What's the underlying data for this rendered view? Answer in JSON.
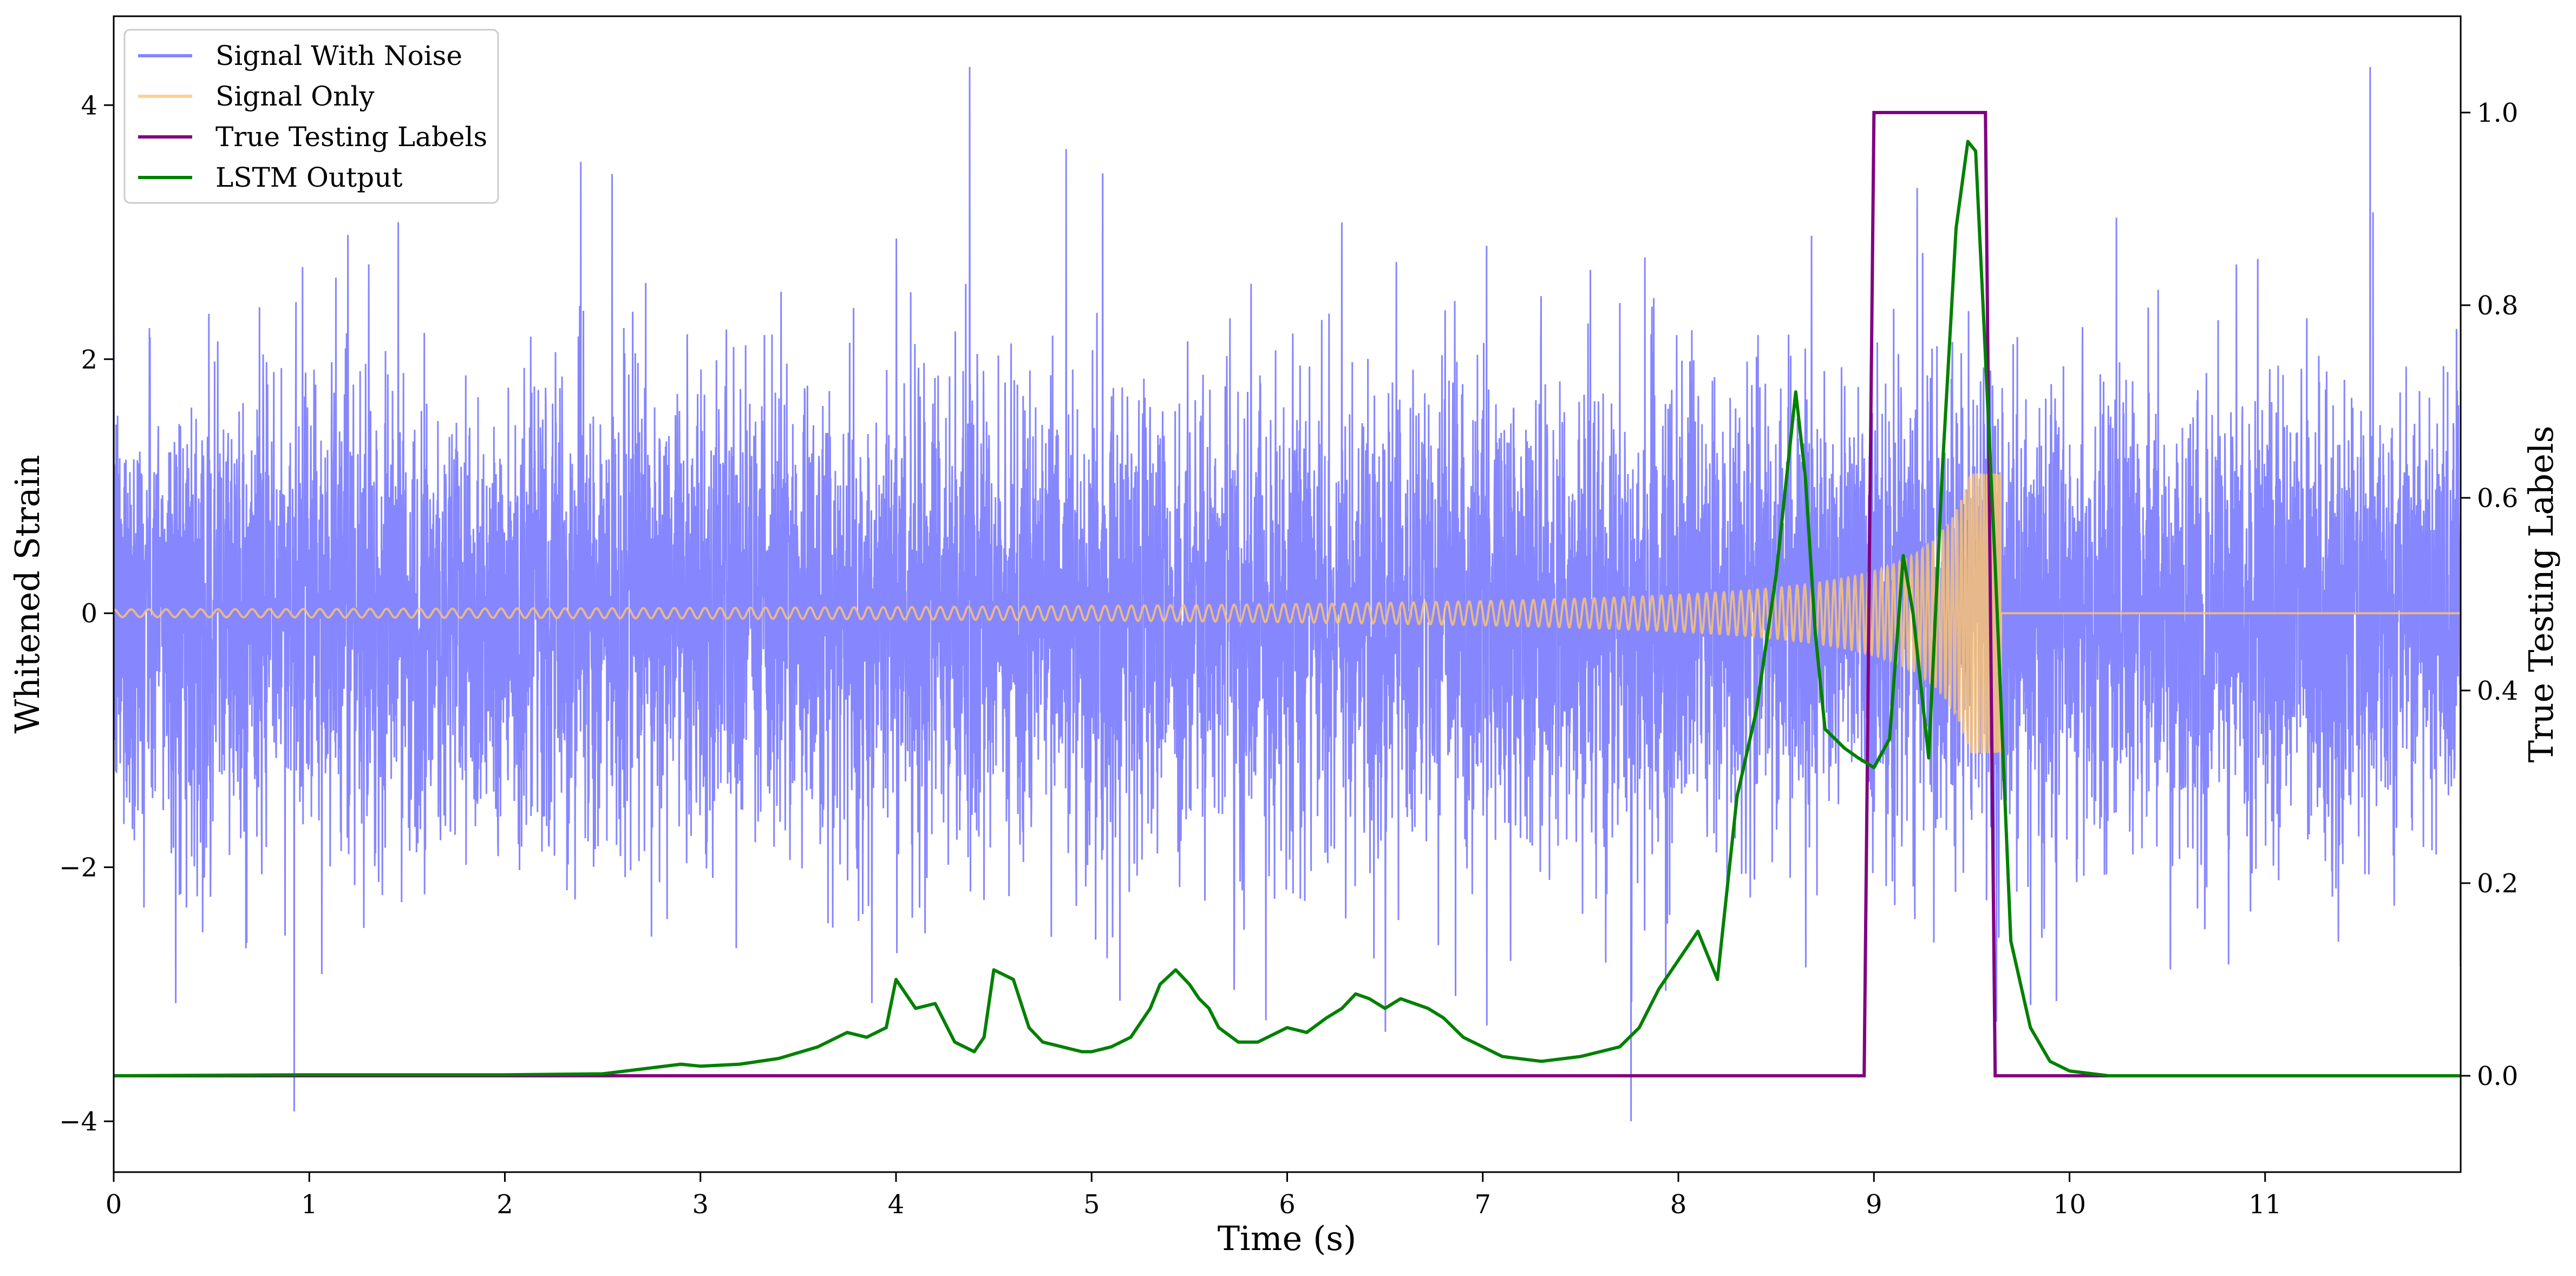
{
  "chart_data": {
    "type": "line",
    "title": "",
    "xlabel": "Time (s)",
    "ylabel": "Whitened Strain",
    "y2label": "True Testing Labels",
    "xlim": [
      0,
      12
    ],
    "ylim": [
      -4.4,
      4.7
    ],
    "y2lim": [
      -0.1,
      1.1
    ],
    "xticks": [
      0,
      1,
      2,
      3,
      4,
      5,
      6,
      7,
      8,
      9,
      10,
      11
    ],
    "yticks": [
      -4,
      -2,
      0,
      2,
      4
    ],
    "y2ticks": [
      0.0,
      0.2,
      0.4,
      0.6,
      0.8,
      1.0
    ],
    "grid": false,
    "legend_position": "top-left",
    "series": [
      {
        "name": "Signal With Noise",
        "axis": "left",
        "color": "#7f7fff",
        "description_values": {
          "duration_s": 12,
          "amplitude_sd": 0.9,
          "max": 4.3,
          "min": -4.0
        }
      },
      {
        "name": "Signal Only",
        "axis": "left",
        "color": "#ffc66d",
        "chirp": {
          "start_s": 0.0,
          "end_s": 9.65,
          "start_amplitude": 0.03,
          "peak_amplitude": 1.1
        },
        "after_end_value": 0
      },
      {
        "name": "True Testing Labels",
        "axis": "right",
        "color": "#800080",
        "x": [
          0,
          8.95,
          9.0,
          9.57,
          9.62,
          12
        ],
        "y": [
          0,
          0,
          1,
          1,
          0,
          0
        ]
      },
      {
        "name": "LSTM Output",
        "axis": "right",
        "color": "#008000",
        "x": [
          0,
          1.0,
          2.0,
          2.5,
          2.9,
          3.0,
          3.2,
          3.4,
          3.6,
          3.75,
          3.85,
          3.95,
          4.0,
          4.05,
          4.1,
          4.2,
          4.3,
          4.4,
          4.45,
          4.5,
          4.6,
          4.68,
          4.75,
          4.85,
          4.95,
          5.0,
          5.1,
          5.2,
          5.3,
          5.35,
          5.43,
          5.5,
          5.55,
          5.6,
          5.65,
          5.75,
          5.85,
          5.95,
          6.0,
          6.1,
          6.2,
          6.28,
          6.35,
          6.42,
          6.5,
          6.58,
          6.65,
          6.72,
          6.8,
          6.9,
          7.0,
          7.1,
          7.3,
          7.5,
          7.6,
          7.7,
          7.8,
          7.9,
          8.0,
          8.1,
          8.2,
          8.3,
          8.4,
          8.5,
          8.6,
          8.65,
          8.7,
          8.75,
          8.85,
          8.92,
          9.0,
          9.08,
          9.15,
          9.2,
          9.28,
          9.35,
          9.42,
          9.48,
          9.52,
          9.56,
          9.62,
          9.7,
          9.8,
          9.9,
          10.0,
          10.2,
          12.0
        ],
        "y": [
          0.0,
          0.001,
          0.001,
          0.002,
          0.012,
          0.01,
          0.012,
          0.018,
          0.03,
          0.045,
          0.04,
          0.05,
          0.1,
          0.085,
          0.07,
          0.075,
          0.035,
          0.025,
          0.04,
          0.11,
          0.1,
          0.05,
          0.035,
          0.03,
          0.025,
          0.025,
          0.03,
          0.04,
          0.07,
          0.095,
          0.11,
          0.095,
          0.08,
          0.07,
          0.05,
          0.035,
          0.035,
          0.045,
          0.05,
          0.045,
          0.06,
          0.07,
          0.085,
          0.08,
          0.07,
          0.08,
          0.075,
          0.07,
          0.06,
          0.04,
          0.03,
          0.02,
          0.015,
          0.02,
          0.025,
          0.03,
          0.05,
          0.09,
          0.12,
          0.15,
          0.1,
          0.29,
          0.38,
          0.52,
          0.71,
          0.62,
          0.46,
          0.36,
          0.34,
          0.33,
          0.32,
          0.35,
          0.54,
          0.48,
          0.33,
          0.63,
          0.88,
          0.97,
          0.96,
          0.79,
          0.53,
          0.14,
          0.05,
          0.015,
          0.005,
          0.0,
          0.0
        ]
      }
    ],
    "legend": [
      "Signal With Noise",
      "Signal Only",
      "True Testing Labels",
      "LSTM Output"
    ]
  }
}
